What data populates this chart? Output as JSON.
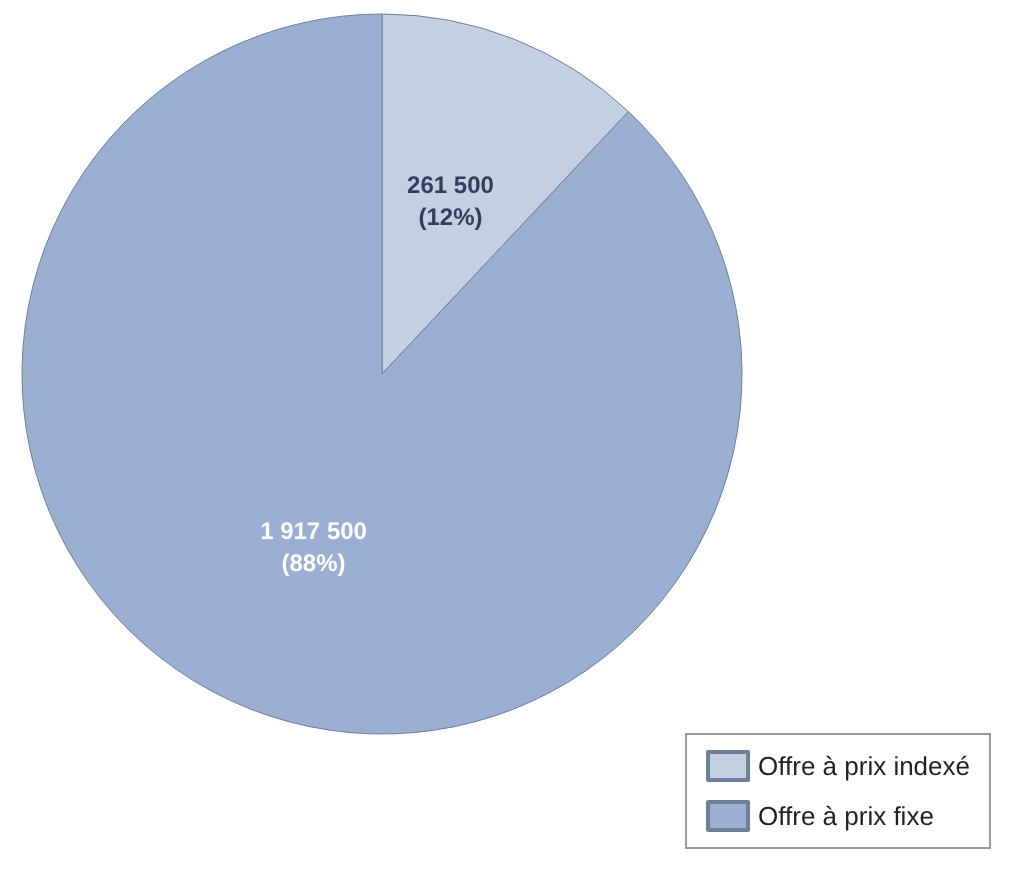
{
  "chart_data": {
    "type": "pie",
    "categories": [
      "Offre à prix indexé",
      "Offre à prix fixe"
    ],
    "values": [
      261500,
      1917500
    ],
    "colors": [
      "#c5cfe2",
      "#9aafd1"
    ],
    "value_labels": [
      "261 500\n(12%)",
      "1 917 500\n(88%)"
    ],
    "legend": "bottom right"
  }
}
